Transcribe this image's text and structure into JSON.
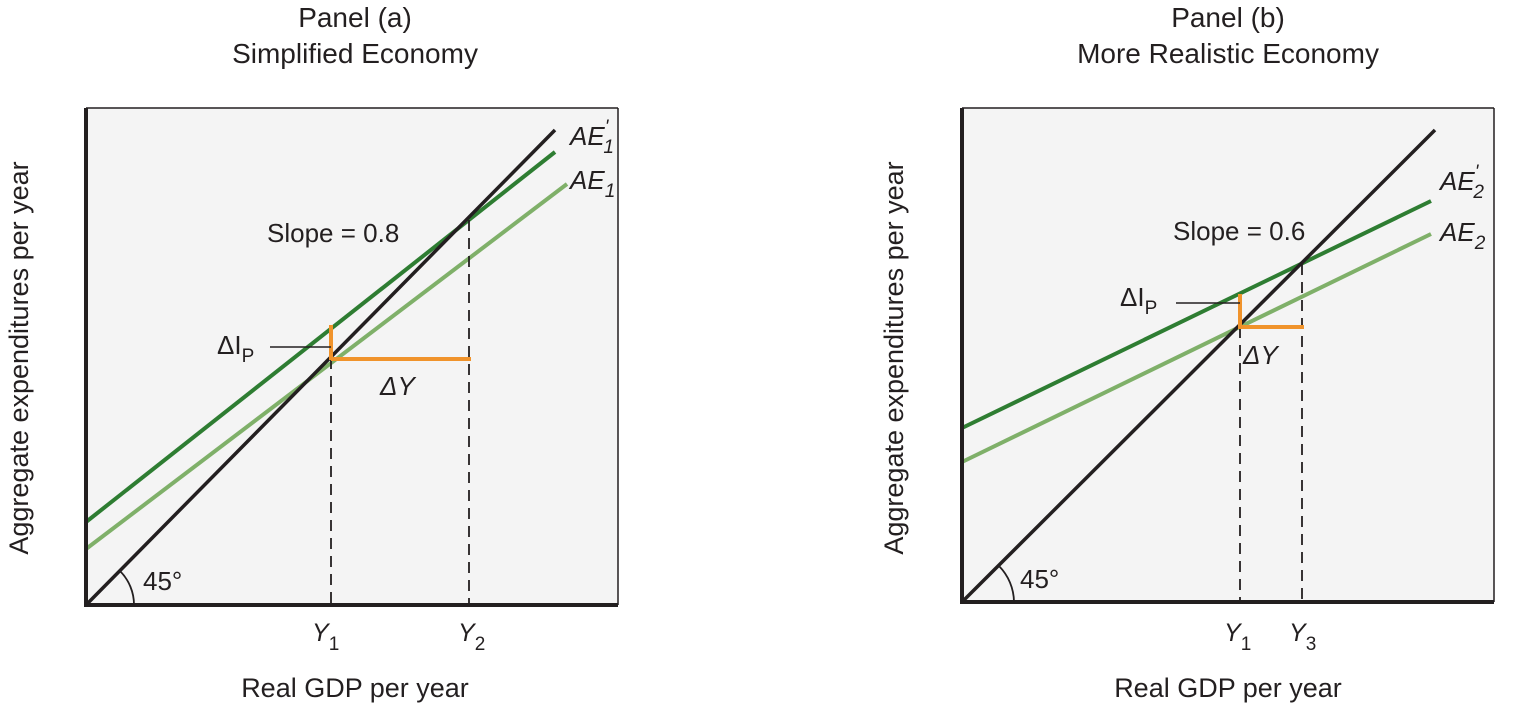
{
  "colors": {
    "frame_fill": "#f4f4f4",
    "frame_stroke": "#231f20",
    "ae_initial": "#7fb069",
    "ae_shifted": "#2e7d32",
    "line_45": "#231f20",
    "delta": "#f0932b"
  },
  "panels": [
    {
      "title_line1": "Panel (a)",
      "title_line2": "Simplified Economy",
      "ylabel": "Aggregate expenditures per year",
      "xlabel": "Real GDP per year",
      "angle_label": "45°",
      "slope_label": "Slope = 0.8",
      "delta_ip_symbol": "ΔI",
      "delta_ip_sub": "P",
      "delta_y_label": "ΔY",
      "ae_shifted_base": "AE",
      "ae_shifted_prime": "'",
      "ae_shifted_sub": "1",
      "ae_initial_base": "AE",
      "ae_initial_sub": "1",
      "tick_y1_base": "Y",
      "tick_y1_sub": "1",
      "tick_y2_base": "Y",
      "tick_y2_sub": "2"
    },
    {
      "title_line1": "Panel (b)",
      "title_line2": "More Realistic Economy",
      "ylabel": "Aggregate expenditures per year",
      "xlabel": "Real GDP per year",
      "angle_label": "45°",
      "slope_label": "Slope = 0.6",
      "delta_ip_symbol": "ΔI",
      "delta_ip_sub": "P",
      "delta_y_label": "ΔY",
      "ae_shifted_base": "AE",
      "ae_shifted_prime": "'",
      "ae_shifted_sub": "2",
      "ae_initial_base": "AE",
      "ae_initial_sub": "2",
      "tick_y1_base": "Y",
      "tick_y1_sub": "1",
      "tick_y2_base": "Y",
      "tick_y2_sub": "3"
    }
  ]
}
